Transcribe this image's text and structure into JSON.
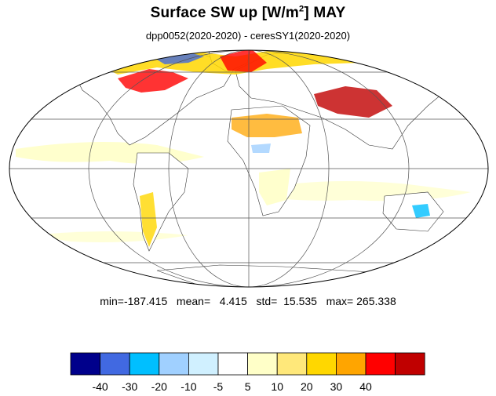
{
  "title": {
    "main_prefix": "Surface SW up [W/m",
    "superscript": "2",
    "main_suffix": "]  MAY"
  },
  "subtitle": "dpp0052(2020-2020) - ceresSY1(2020-2020)",
  "stats": {
    "text": "min=-187.415   mean=   4.415   std=  15.535   max= 265.338"
  },
  "colorbar": {
    "colors": [
      "#00008b",
      "#4169e1",
      "#00bfff",
      "#a0d0ff",
      "#d0f0ff",
      "#ffffff",
      "#ffffc8",
      "#ffe87a",
      "#ffd700",
      "#ffa500",
      "#ff0000",
      "#c00000"
    ],
    "tick_labels": [
      "-40",
      "-30",
      "-20",
      "-10",
      "-5",
      "5",
      "10",
      "20",
      "30",
      "40"
    ]
  },
  "map": {
    "projection": "mollweide",
    "ocean_color": "#ffffe0",
    "land_color": "#ffffff"
  }
}
